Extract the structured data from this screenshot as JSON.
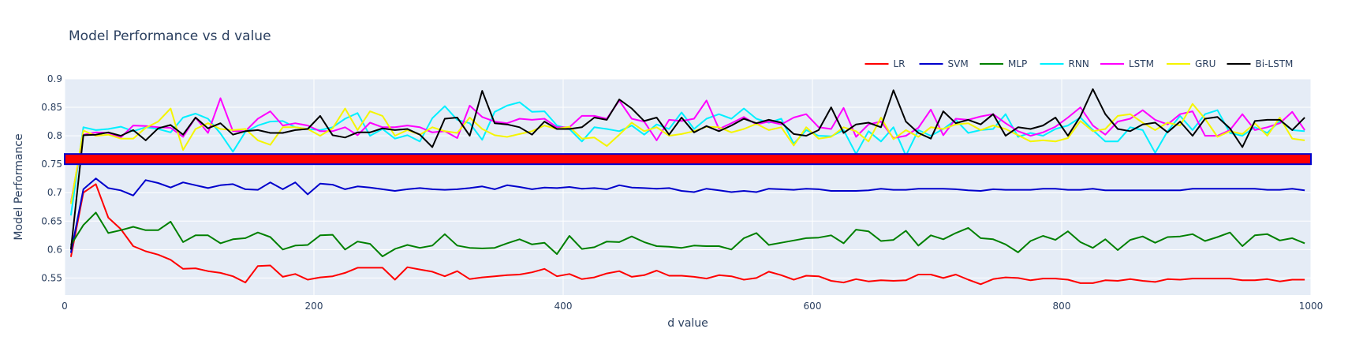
{
  "chart_data": {
    "type": "line",
    "title": "Model Performance vs d value",
    "xlabel": "d value",
    "ylabel": "Model Performance",
    "xlim": [
      0,
      1000
    ],
    "ylim": [
      0.52,
      0.9
    ],
    "x_ticks": [
      0,
      200,
      400,
      600,
      800,
      1000
    ],
    "x_tick_labels": [
      "0",
      "200",
      "400",
      "600",
      "800",
      "1000"
    ],
    "y_ticks": [
      0.55,
      0.6,
      0.65,
      0.7,
      0.75,
      0.8,
      0.85,
      0.9
    ],
    "y_tick_labels": [
      "0.55",
      "0.6",
      "0.65",
      "0.7",
      "0.75",
      "0.8",
      "0.85",
      "0.9"
    ],
    "grid": true,
    "legend_position": "top-right",
    "band": {
      "y0": 0.75,
      "y1": 0.768,
      "fill": "#ff0000",
      "stroke": "#0000cc"
    },
    "x": [
      5,
      15,
      25,
      35,
      45,
      55,
      65,
      75,
      85,
      95,
      105,
      115,
      125,
      135,
      145,
      155,
      165,
      175,
      185,
      195,
      205,
      215,
      225,
      235,
      245,
      255,
      265,
      275,
      285,
      295,
      305,
      315,
      325,
      335,
      345,
      355,
      365,
      375,
      385,
      395,
      405,
      415,
      425,
      435,
      445,
      455,
      465,
      475,
      485,
      495,
      505,
      515,
      525,
      535,
      545,
      555,
      565,
      575,
      585,
      595,
      605,
      615,
      625,
      635,
      645,
      655,
      665,
      675,
      685,
      695,
      705,
      715,
      725,
      735,
      745,
      755,
      765,
      775,
      785,
      795,
      805,
      815,
      825,
      835,
      845,
      855,
      865,
      875,
      885,
      895,
      905,
      915,
      925,
      935,
      945,
      955,
      965,
      975,
      985,
      995
    ],
    "series": [
      {
        "name": "LR",
        "color": "#ff0000",
        "values": [
          0.587,
          0.7,
          0.715,
          0.656,
          0.636,
          0.606,
          0.597,
          0.591,
          0.582,
          0.566,
          0.567,
          0.562,
          0.559,
          0.553,
          0.542,
          0.571,
          0.572,
          0.552,
          0.557,
          0.547,
          0.551,
          0.553,
          0.559,
          0.568,
          0.568,
          0.568,
          0.547,
          0.569,
          0.565,
          0.561,
          0.553,
          0.562,
          0.548,
          0.551,
          0.553,
          0.555,
          0.556,
          0.56,
          0.566,
          0.553,
          0.557,
          0.548,
          0.551,
          0.558,
          0.562,
          0.552,
          0.555,
          0.563,
          0.554,
          0.554,
          0.552,
          0.549,
          0.555,
          0.553,
          0.547,
          0.55,
          0.561,
          0.555,
          0.547,
          0.554,
          0.553,
          0.545,
          0.542,
          0.548,
          0.544,
          0.546,
          0.545,
          0.546,
          0.556,
          0.556,
          0.55,
          0.556,
          0.547,
          0.539,
          0.548,
          0.551,
          0.55,
          0.546,
          0.549,
          0.549,
          0.547,
          0.541,
          0.541,
          0.546,
          0.545,
          0.548,
          0.545,
          0.543,
          0.548,
          0.547,
          0.549,
          0.549,
          0.549,
          0.549,
          0.546,
          0.546,
          0.548,
          0.544,
          0.547,
          0.547
        ]
      },
      {
        "name": "SVM",
        "color": "#0000cc",
        "values": [
          0.594,
          0.706,
          0.725,
          0.708,
          0.704,
          0.695,
          0.722,
          0.717,
          0.709,
          0.718,
          0.713,
          0.708,
          0.713,
          0.715,
          0.706,
          0.705,
          0.718,
          0.706,
          0.718,
          0.697,
          0.716,
          0.714,
          0.706,
          0.711,
          0.709,
          0.706,
          0.703,
          0.706,
          0.708,
          0.706,
          0.705,
          0.706,
          0.708,
          0.711,
          0.706,
          0.713,
          0.71,
          0.706,
          0.709,
          0.708,
          0.71,
          0.707,
          0.708,
          0.706,
          0.713,
          0.709,
          0.708,
          0.707,
          0.708,
          0.703,
          0.701,
          0.707,
          0.704,
          0.701,
          0.703,
          0.701,
          0.707,
          0.706,
          0.705,
          0.707,
          0.706,
          0.703,
          0.703,
          0.703,
          0.704,
          0.707,
          0.705,
          0.705,
          0.707,
          0.707,
          0.707,
          0.706,
          0.704,
          0.703,
          0.706,
          0.705,
          0.705,
          0.705,
          0.707,
          0.707,
          0.705,
          0.705,
          0.707,
          0.704,
          0.704,
          0.704,
          0.704,
          0.704,
          0.704,
          0.704,
          0.707,
          0.707,
          0.707,
          0.707,
          0.707,
          0.707,
          0.705,
          0.705,
          0.707,
          0.704
        ]
      },
      {
        "name": "MLP",
        "color": "#008000",
        "values": [
          0.608,
          0.643,
          0.665,
          0.629,
          0.634,
          0.64,
          0.634,
          0.634,
          0.649,
          0.613,
          0.625,
          0.625,
          0.611,
          0.618,
          0.62,
          0.63,
          0.622,
          0.6,
          0.607,
          0.608,
          0.625,
          0.626,
          0.6,
          0.614,
          0.61,
          0.588,
          0.601,
          0.608,
          0.603,
          0.607,
          0.627,
          0.607,
          0.603,
          0.602,
          0.603,
          0.611,
          0.618,
          0.609,
          0.612,
          0.592,
          0.624,
          0.601,
          0.604,
          0.614,
          0.613,
          0.623,
          0.613,
          0.606,
          0.605,
          0.603,
          0.607,
          0.606,
          0.606,
          0.6,
          0.62,
          0.629,
          0.608,
          0.612,
          0.616,
          0.62,
          0.621,
          0.625,
          0.611,
          0.635,
          0.632,
          0.615,
          0.617,
          0.633,
          0.607,
          0.625,
          0.618,
          0.629,
          0.638,
          0.62,
          0.618,
          0.609,
          0.595,
          0.615,
          0.624,
          0.617,
          0.632,
          0.613,
          0.603,
          0.618,
          0.599,
          0.617,
          0.623,
          0.612,
          0.622,
          0.623,
          0.627,
          0.615,
          0.622,
          0.63,
          0.606,
          0.625,
          0.627,
          0.616,
          0.62,
          0.611
        ]
      },
      {
        "name": "RNN",
        "color": "#00f0ff",
        "values": [
          0.66,
          0.815,
          0.81,
          0.812,
          0.816,
          0.808,
          0.815,
          0.812,
          0.806,
          0.832,
          0.839,
          0.83,
          0.804,
          0.772,
          0.807,
          0.818,
          0.825,
          0.826,
          0.815,
          0.812,
          0.81,
          0.815,
          0.83,
          0.84,
          0.8,
          0.812,
          0.795,
          0.801,
          0.79,
          0.831,
          0.852,
          0.828,
          0.822,
          0.793,
          0.842,
          0.853,
          0.859,
          0.842,
          0.843,
          0.818,
          0.812,
          0.79,
          0.815,
          0.812,
          0.808,
          0.818,
          0.802,
          0.82,
          0.812,
          0.841,
          0.812,
          0.83,
          0.838,
          0.83,
          0.848,
          0.83,
          0.823,
          0.83,
          0.786,
          0.81,
          0.8,
          0.799,
          0.81,
          0.768,
          0.808,
          0.79,
          0.815,
          0.765,
          0.81,
          0.8,
          0.812,
          0.828,
          0.805,
          0.81,
          0.812,
          0.838,
          0.798,
          0.805,
          0.8,
          0.812,
          0.818,
          0.832,
          0.81,
          0.79,
          0.79,
          0.815,
          0.81,
          0.77,
          0.808,
          0.835,
          0.81,
          0.838,
          0.845,
          0.805,
          0.8,
          0.815,
          0.805,
          0.826,
          0.81,
          0.808
        ]
      },
      {
        "name": "LSTM",
        "color": "#ff00ff",
        "values": [
          0.683,
          0.802,
          0.806,
          0.805,
          0.797,
          0.818,
          0.817,
          0.815,
          0.814,
          0.798,
          0.832,
          0.805,
          0.866,
          0.808,
          0.808,
          0.83,
          0.843,
          0.818,
          0.822,
          0.818,
          0.808,
          0.808,
          0.815,
          0.801,
          0.823,
          0.815,
          0.815,
          0.818,
          0.815,
          0.806,
          0.808,
          0.796,
          0.853,
          0.833,
          0.825,
          0.822,
          0.83,
          0.828,
          0.83,
          0.815,
          0.815,
          0.835,
          0.835,
          0.83,
          0.862,
          0.83,
          0.825,
          0.792,
          0.828,
          0.826,
          0.83,
          0.862,
          0.812,
          0.822,
          0.833,
          0.82,
          0.825,
          0.82,
          0.832,
          0.838,
          0.815,
          0.812,
          0.849,
          0.798,
          0.82,
          0.825,
          0.796,
          0.8,
          0.814,
          0.846,
          0.801,
          0.83,
          0.828,
          0.834,
          0.838,
          0.822,
          0.808,
          0.8,
          0.806,
          0.816,
          0.832,
          0.85,
          0.818,
          0.802,
          0.825,
          0.83,
          0.845,
          0.828,
          0.82,
          0.838,
          0.843,
          0.8,
          0.8,
          0.81,
          0.838,
          0.81,
          0.815,
          0.822,
          0.842,
          0.81
        ]
      },
      {
        "name": "GRU",
        "color": "#f5f500",
        "values": [
          0.68,
          0.809,
          0.8,
          0.802,
          0.795,
          0.795,
          0.814,
          0.825,
          0.848,
          0.775,
          0.812,
          0.822,
          0.812,
          0.81,
          0.812,
          0.792,
          0.784,
          0.815,
          0.815,
          0.812,
          0.8,
          0.813,
          0.848,
          0.81,
          0.843,
          0.835,
          0.8,
          0.81,
          0.802,
          0.815,
          0.808,
          0.805,
          0.832,
          0.812,
          0.801,
          0.798,
          0.803,
          0.808,
          0.818,
          0.812,
          0.816,
          0.795,
          0.797,
          0.782,
          0.802,
          0.823,
          0.808,
          0.815,
          0.8,
          0.803,
          0.808,
          0.816,
          0.815,
          0.806,
          0.812,
          0.821,
          0.81,
          0.815,
          0.783,
          0.815,
          0.795,
          0.798,
          0.815,
          0.808,
          0.79,
          0.832,
          0.794,
          0.81,
          0.798,
          0.815,
          0.812,
          0.82,
          0.822,
          0.81,
          0.818,
          0.812,
          0.801,
          0.79,
          0.792,
          0.79,
          0.796,
          0.826,
          0.808,
          0.812,
          0.835,
          0.838,
          0.823,
          0.81,
          0.823,
          0.818,
          0.856,
          0.83,
          0.798,
          0.808,
          0.803,
          0.822,
          0.8,
          0.832,
          0.795,
          0.792
        ]
      },
      {
        "name": "Bi-LSTM",
        "color": "#000000",
        "values": [
          0.6,
          0.801,
          0.802,
          0.806,
          0.8,
          0.81,
          0.792,
          0.813,
          0.819,
          0.802,
          0.832,
          0.813,
          0.822,
          0.802,
          0.808,
          0.81,
          0.805,
          0.805,
          0.81,
          0.812,
          0.835,
          0.801,
          0.797,
          0.806,
          0.806,
          0.813,
          0.81,
          0.812,
          0.802,
          0.78,
          0.83,
          0.832,
          0.8,
          0.879,
          0.822,
          0.82,
          0.815,
          0.802,
          0.825,
          0.812,
          0.812,
          0.815,
          0.832,
          0.828,
          0.864,
          0.848,
          0.826,
          0.832,
          0.802,
          0.832,
          0.806,
          0.817,
          0.808,
          0.818,
          0.83,
          0.822,
          0.828,
          0.823,
          0.803,
          0.8,
          0.81,
          0.85,
          0.805,
          0.82,
          0.823,
          0.815,
          0.88,
          0.825,
          0.805,
          0.795,
          0.843,
          0.822,
          0.828,
          0.82,
          0.838,
          0.8,
          0.815,
          0.812,
          0.818,
          0.832,
          0.8,
          0.834,
          0.882,
          0.838,
          0.812,
          0.808,
          0.82,
          0.823,
          0.806,
          0.825,
          0.8,
          0.83,
          0.833,
          0.813,
          0.78,
          0.826,
          0.828,
          0.828,
          0.81,
          0.832
        ]
      }
    ]
  }
}
